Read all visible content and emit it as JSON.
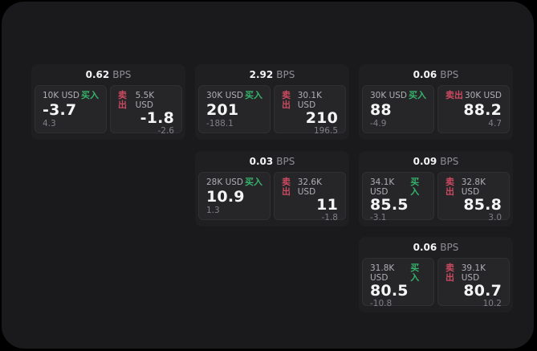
{
  "labels": {
    "bps_suffix": "BPS",
    "buy": "买入",
    "sell": "卖出"
  },
  "colors": {
    "page_background": "#000000",
    "surface_background": "#1a1a1c",
    "tile_background": "#1f1f21",
    "panel_background": "#262628",
    "buy_green": "#35b26b",
    "sell_red": "#ca4a61",
    "price_text": "#f5f5f7",
    "muted_text": "#8e8f94"
  },
  "cards": [
    {
      "bps": "0.62",
      "buy": {
        "size": "10K USD",
        "price": "-3.7",
        "delta": "4.3"
      },
      "sell": {
        "size": "5.5K USD",
        "price": "-1.8",
        "delta": "-2.6"
      }
    },
    {
      "bps": "2.92",
      "buy": {
        "size": "30K USD",
        "price": "201",
        "delta": "-188.1"
      },
      "sell": {
        "size": "30.1K USD",
        "price": "210",
        "delta": "196.5"
      }
    },
    {
      "bps": "0.06",
      "buy": {
        "size": "30K USD",
        "price": "88",
        "delta": "-4.9"
      },
      "sell": {
        "size": "30K USD",
        "price": "88.2",
        "delta": "4.7"
      }
    },
    {
      "bps": "0.03",
      "buy": {
        "size": "28K USD",
        "price": "10.9",
        "delta": "1.3"
      },
      "sell": {
        "size": "32.6K USD",
        "price": "11",
        "delta": "-1.8"
      }
    },
    {
      "bps": "0.09",
      "buy": {
        "size": "34.1K USD",
        "price": "85.5",
        "delta": "-3.1"
      },
      "sell": {
        "size": "32.8K USD",
        "price": "85.8",
        "delta": "3.0"
      }
    },
    {
      "bps": "0.06",
      "buy": {
        "size": "31.8K USD",
        "price": "80.5",
        "delta": "-10.8"
      },
      "sell": {
        "size": "39.1K USD",
        "price": "80.7",
        "delta": "10.2"
      }
    }
  ]
}
